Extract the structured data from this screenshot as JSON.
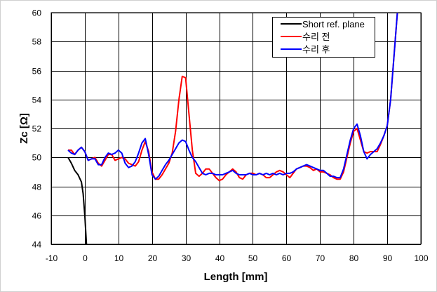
{
  "chart_data": {
    "type": "line",
    "title": "",
    "xlabel": "Length [mm]",
    "ylabel": "Zc [Ω]",
    "xlim": [
      -10,
      100
    ],
    "ylim": [
      44,
      60
    ],
    "xticks": [
      -10,
      0,
      10,
      20,
      30,
      40,
      50,
      60,
      70,
      80,
      90,
      100
    ],
    "yticks": [
      44,
      46,
      48,
      50,
      52,
      54,
      56,
      58,
      60
    ],
    "grid": true,
    "legend_position": "top-right",
    "series": [
      {
        "name": "Short ref. plane",
        "color": "#000000",
        "x": [
          -5,
          -4,
          -3,
          -2,
          -1,
          -0.5,
          0,
          0.5
        ],
        "y": [
          50.0,
          49.6,
          49.1,
          48.8,
          48.3,
          47.5,
          46.0,
          44.0
        ]
      },
      {
        "name": "수리 전",
        "color": "#ff0000",
        "x": [
          -5,
          -4,
          -3,
          -2,
          -1,
          0,
          1,
          2,
          3,
          4,
          5,
          6,
          7,
          8,
          9,
          10,
          11,
          12,
          13,
          14,
          15,
          16,
          17,
          18,
          19,
          20,
          21,
          22,
          23,
          24,
          25,
          26,
          27,
          28,
          29,
          30,
          31,
          32,
          33,
          34,
          35,
          36,
          37,
          38,
          39,
          40,
          41,
          42,
          43,
          44,
          45,
          46,
          47,
          48,
          49,
          50,
          51,
          52,
          53,
          54,
          55,
          56,
          57,
          58,
          59,
          60,
          61,
          62,
          63,
          64,
          65,
          66,
          67,
          68,
          69,
          70,
          71,
          72,
          73,
          74,
          75,
          76,
          77,
          78,
          79,
          80,
          81,
          82,
          83,
          84,
          85,
          86,
          87,
          88,
          89,
          90,
          91,
          92,
          93
        ],
        "y": [
          50.5,
          50.5,
          50.2,
          50.5,
          50.7,
          50.4,
          49.8,
          49.9,
          50.0,
          49.6,
          49.4,
          49.8,
          50.2,
          50.2,
          49.8,
          49.9,
          50.0,
          49.9,
          49.6,
          49.5,
          49.4,
          49.7,
          50.5,
          51.1,
          50.4,
          49.0,
          48.5,
          48.5,
          48.8,
          49.2,
          49.6,
          50.3,
          51.8,
          54.0,
          55.6,
          55.5,
          53.0,
          50.5,
          48.9,
          48.7,
          48.9,
          49.2,
          49.2,
          48.9,
          48.6,
          48.4,
          48.5,
          48.8,
          49.0,
          49.2,
          49.0,
          48.6,
          48.5,
          48.8,
          48.9,
          48.9,
          48.8,
          48.9,
          48.8,
          48.6,
          48.6,
          48.8,
          49.0,
          49.1,
          49.0,
          48.8,
          48.6,
          48.9,
          49.2,
          49.3,
          49.4,
          49.4,
          49.3,
          49.1,
          49.2,
          49.0,
          49.0,
          48.9,
          48.8,
          48.6,
          48.5,
          48.5,
          49.0,
          50.0,
          51.0,
          51.8,
          52.0,
          51.2,
          50.4,
          50.3,
          50.4,
          50.4,
          50.4,
          50.9,
          51.5,
          52.2,
          54.0,
          57.0,
          60.0
        ]
      },
      {
        "name": "수리 후",
        "color": "#0000ff",
        "x": [
          -5,
          -4,
          -3,
          -2,
          -1,
          0,
          1,
          2,
          3,
          4,
          5,
          6,
          7,
          8,
          9,
          10,
          11,
          12,
          13,
          14,
          15,
          16,
          17,
          18,
          19,
          20,
          21,
          22,
          23,
          24,
          25,
          26,
          27,
          28,
          29,
          30,
          31,
          32,
          33,
          34,
          35,
          36,
          37,
          38,
          39,
          40,
          41,
          42,
          43,
          44,
          45,
          46,
          47,
          48,
          49,
          50,
          51,
          52,
          53,
          54,
          55,
          56,
          57,
          58,
          59,
          60,
          61,
          62,
          63,
          64,
          65,
          66,
          67,
          68,
          69,
          70,
          71,
          72,
          73,
          74,
          75,
          76,
          77,
          78,
          79,
          80,
          81,
          82,
          83,
          84,
          85,
          86,
          87,
          88,
          89,
          90,
          91,
          92,
          93
        ],
        "y": [
          50.5,
          50.3,
          50.2,
          50.5,
          50.7,
          50.4,
          49.8,
          49.9,
          49.9,
          49.5,
          49.5,
          50.0,
          50.3,
          50.2,
          50.3,
          50.5,
          50.3,
          49.6,
          49.3,
          49.4,
          49.7,
          50.3,
          51.0,
          51.3,
          50.2,
          48.8,
          48.5,
          48.7,
          49.1,
          49.5,
          49.8,
          50.2,
          50.6,
          51.0,
          51.2,
          51.1,
          50.5,
          50.0,
          49.7,
          49.3,
          48.9,
          48.8,
          48.9,
          48.9,
          48.8,
          48.8,
          48.8,
          48.9,
          49.0,
          49.1,
          48.9,
          48.8,
          48.8,
          48.8,
          48.9,
          48.8,
          48.8,
          48.9,
          48.8,
          48.9,
          48.8,
          48.9,
          48.8,
          48.9,
          48.8,
          48.9,
          48.9,
          49.0,
          49.2,
          49.3,
          49.4,
          49.5,
          49.4,
          49.3,
          49.2,
          49.1,
          49.1,
          48.9,
          48.7,
          48.7,
          48.6,
          48.6,
          49.2,
          50.2,
          51.2,
          52.0,
          52.3,
          51.5,
          50.4,
          49.9,
          50.2,
          50.4,
          50.6,
          51.0,
          51.5,
          52.2,
          54.0,
          57.0,
          60.0
        ]
      }
    ]
  }
}
